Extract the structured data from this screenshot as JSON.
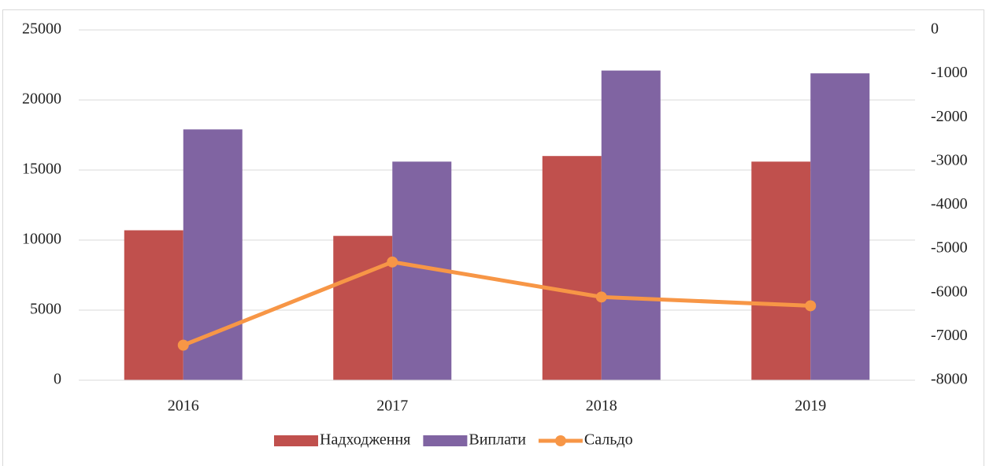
{
  "chart_data": {
    "type": "bar_line",
    "categories": [
      "2016",
      "2017",
      "2018",
      "2019"
    ],
    "series": [
      {
        "name": "Надходження",
        "color": "#c0504d",
        "type": "bar",
        "values": [
          10700,
          10300,
          16000,
          15600
        ]
      },
      {
        "name": "Виплати",
        "color": "#8064a2",
        "type": "bar",
        "values": [
          17900,
          15600,
          22100,
          21900
        ]
      },
      {
        "name": "Сальдо",
        "color": "#f79646",
        "type": "line",
        "axis": "y2",
        "values": [
          -7200,
          -5300,
          -6100,
          -6300
        ]
      }
    ],
    "ylim": [
      0,
      25000
    ],
    "yticks": [
      0,
      5000,
      10000,
      15000,
      20000,
      25000
    ],
    "y2lim": [
      -8000,
      0
    ],
    "y2ticks": [
      -8000,
      -7000,
      -6000,
      -5000,
      -4000,
      -3000,
      -2000,
      -1000,
      0
    ],
    "grid": true,
    "legend": "bottom"
  }
}
